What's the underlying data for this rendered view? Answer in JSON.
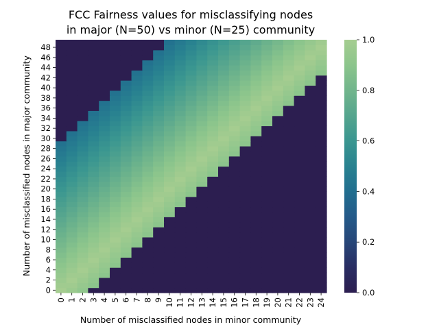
{
  "chart_data": {
    "type": "heatmap",
    "title_lines": [
      "FCC Fairness values for misclassifying nodes",
      "in major (N=50) vs minor (N=25) community"
    ],
    "xlabel": "Number of misclassified nodes in minor community",
    "ylabel": "Number of misclassified nodes in major community",
    "x": [
      0,
      1,
      2,
      3,
      4,
      5,
      6,
      7,
      8,
      9,
      10,
      11,
      12,
      13,
      14,
      15,
      16,
      17,
      18,
      19,
      20,
      21,
      22,
      23,
      24
    ],
    "y": [
      0,
      1,
      2,
      3,
      4,
      5,
      6,
      7,
      8,
      9,
      10,
      11,
      12,
      13,
      14,
      15,
      16,
      17,
      18,
      19,
      20,
      21,
      22,
      23,
      24,
      25,
      26,
      27,
      28,
      29,
      30,
      31,
      32,
      33,
      34,
      35,
      36,
      37,
      38,
      39,
      40,
      41,
      42,
      43,
      44,
      45,
      46,
      47,
      48,
      49
    ],
    "x_ticks": [
      0,
      1,
      2,
      3,
      4,
      5,
      6,
      7,
      8,
      9,
      10,
      11,
      12,
      13,
      14,
      15,
      16,
      17,
      18,
      19,
      20,
      21,
      22,
      23,
      24
    ],
    "y_ticks": [
      0,
      2,
      4,
      6,
      8,
      10,
      12,
      14,
      16,
      18,
      20,
      22,
      24,
      26,
      28,
      30,
      32,
      34,
      36,
      38,
      40,
      42,
      44,
      46,
      48
    ],
    "zlim": [
      0.0,
      1.0
    ],
    "colorbar_ticks": [
      "0.0",
      "0.2",
      "0.4",
      "0.6",
      "0.8",
      "1.0"
    ],
    "colormap": "crest",
    "value_rule": "cell value = 1 - |i/50 - j/25| when j/25 - i/50 < 0.12 (and i/50 - j/25 < 0.60); otherwise 0.0 (i = major misclassified, j = minor misclassified)",
    "boundary_major_by_minor": [
      31,
      30,
      30,
      29,
      29,
      29,
      28,
      28,
      27,
      27,
      26,
      26,
      26,
      25,
      23,
      23,
      23,
      23,
      22,
      22,
      22,
      21,
      21,
      20,
      20
    ]
  }
}
